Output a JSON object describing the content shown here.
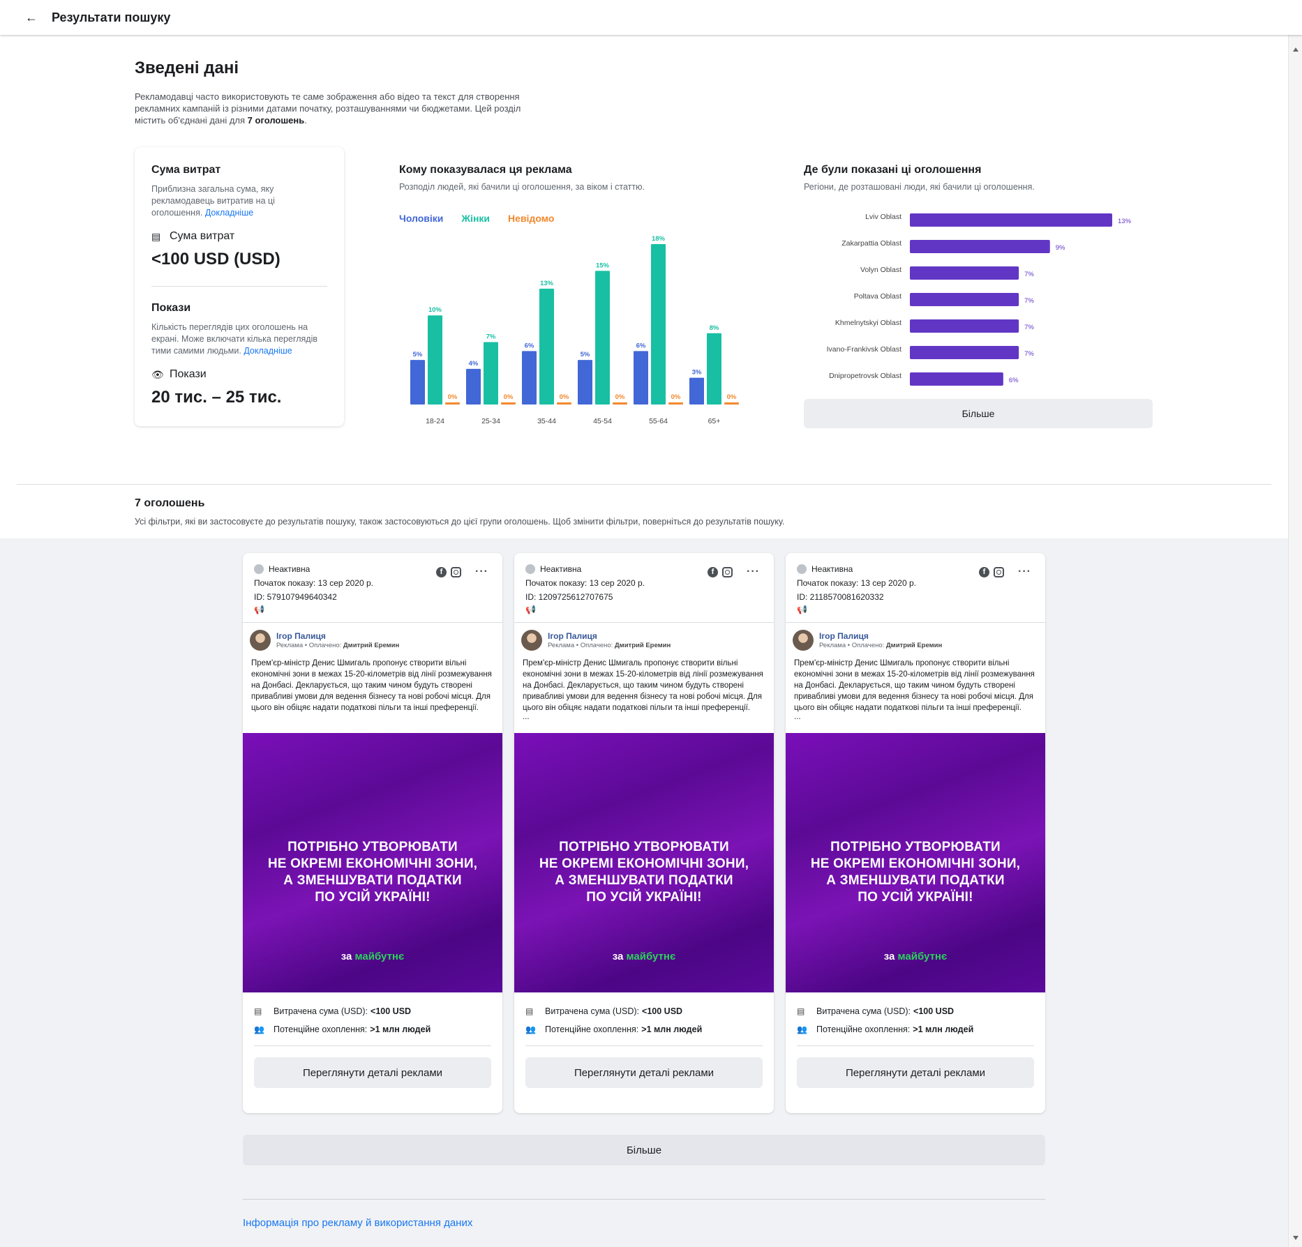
{
  "topbar": {
    "back_icon": "←",
    "title": "Результати пошуку"
  },
  "summary": {
    "title": "Зведені дані",
    "desc_before": "Рекламодавці часто використовують те саме зображення або відео та текст для створення рекламних кампаній із різними датами початку, розташуваннями чи бюджетами. Цей розділ містить об'єднані дані для ",
    "desc_bold": "7 оголошень",
    "desc_after": "."
  },
  "spend": {
    "title": "Сума витрат",
    "desc": "Приблизна загальна сума, яку рекламодавець витратив на ці оголошення.",
    "link": "Докладніше",
    "metric_label": "Сума витрат",
    "metric_value": "<100 USD (USD)"
  },
  "impressions": {
    "title": "Покази",
    "desc": "Кількість переглядів цих оголошень на екрані. Може включати кілька переглядів тими самими людьми.",
    "link": "Докладніше",
    "metric_label": "Покази",
    "metric_value": "20 тис. – 25 тис."
  },
  "demographics": {
    "title": "Кому показувалася ця реклама",
    "subtitle": "Розподіл людей, які бачили ці оголошення, за віком і статтю.",
    "legend": [
      "Чоловіки",
      "Жінки",
      "Невідомо"
    ]
  },
  "regions": {
    "title": "Де були показані ці оголошення",
    "subtitle": "Регіони, де розташовані люди, які бачили ці оголошення.",
    "more_label": "Більше"
  },
  "chart_data": [
    {
      "type": "bar",
      "categories": [
        "18-24",
        "25-34",
        "35-44",
        "45-54",
        "55-64",
        "65+"
      ],
      "series": [
        {
          "name": "Чоловіки",
          "values": [
            5,
            4,
            6,
            5,
            6,
            3
          ],
          "labels": [
            "5%",
            "4%",
            "6%",
            "5%",
            "6%",
            "3%"
          ],
          "color": "#4267d6"
        },
        {
          "name": "Жінки",
          "values": [
            10,
            7,
            13,
            15,
            18,
            8
          ],
          "labels": [
            "10%",
            "7%",
            "13%",
            "15%",
            "18%",
            "8%"
          ],
          "color": "#19bfa3"
        },
        {
          "name": "Невідомо",
          "values": [
            0,
            0,
            0,
            0,
            0,
            0
          ],
          "labels": [
            "0%",
            "0%",
            "0%",
            "0%",
            "0%",
            "0%"
          ],
          "color": "#f2882d"
        }
      ],
      "ylim": [
        0,
        18
      ]
    },
    {
      "type": "bar",
      "orientation": "horizontal",
      "categories": [
        "Lviv Oblast",
        "Zakarpattia Oblast",
        "Volyn Oblast",
        "Poltava Oblast",
        "Khmelnytskyi Oblast",
        "Ivano-Frankivsk Oblast",
        "Dnipropetrovsk Oblast"
      ],
      "values": [
        13,
        9,
        7,
        7,
        7,
        7,
        6
      ],
      "labels": [
        "13%",
        "9%",
        "7%",
        "7%",
        "7%",
        "7%",
        "6%"
      ],
      "color": "#6236c5",
      "xlim": [
        0,
        13
      ]
    }
  ],
  "ads_section": {
    "count_title": "7 оголошень",
    "note": "Усі фільтри, які ви застосовуєте до результатів пошуку, також застосовуються до цієї групи оголошень. Щоб змінити фільтри, поверніться до результатів пошуку."
  },
  "ads": [
    {
      "status": "Неактивна",
      "start": "Початок показу: 13 сер 2020 р.",
      "id": "ID: 579107949640342",
      "advertiser": "Ігор Палиця",
      "meta_prefix": "Реклама • Оплачено: ",
      "meta_payer": "Дмитрий Еремин",
      "body": "Прем'єр-міністр Денис Шмигаль пропонує створити вільні економічні зони в межах 15-20-кілометрів від лінії розмежування на Донбасі. Декларується, що таким чином будуть створені привабливі умови для ведення бізнесу та нові робочі місця. Для цього він обіцяє надати податкові пільги та інші преференції.",
      "ellipsis": "",
      "headline": "ПОТРІБНО УТВОРЮВАТИ\nНЕ ОКРЕМІ ЕКОНОМІЧНІ ЗОНИ,\nА ЗМЕНШУВАТИ ПОДАТКИ\nПО УСІЙ УКРАЇНІ!",
      "brand_a": "за",
      "brand_b": "майбутнє",
      "spent_label": "Витрачена сума (USD):",
      "spent_value": "<100 USD",
      "reach_label": "Потенційне охоплення:",
      "reach_value": ">1 млн людей",
      "button": "Переглянути деталі реклами"
    },
    {
      "status": "Неактивна",
      "start": "Початок показу: 13 сер 2020 р.",
      "id": "ID: 1209725612707675",
      "advertiser": "Ігор Палиця",
      "meta_prefix": "Реклама • Оплачено: ",
      "meta_payer": "Дмитрий Еремин",
      "body": "Прем'єр-міністр Денис Шмигаль пропонує створити вільні економічні зони в межах 15-20-кілометрів від лінії розмежування на Донбасі. Декларується, що таким чином будуть створені привабливі умови для ведення бізнесу та нові робочі місця. Для цього він обіцяє надати податкові пільги та інші преференції.",
      "ellipsis": "...",
      "headline": "ПОТРІБНО УТВОРЮВАТИ\nНЕ ОКРЕМІ ЕКОНОМІЧНІ ЗОНИ,\nА ЗМЕНШУВАТИ ПОДАТКИ\nПО УСІЙ УКРАЇНІ!",
      "brand_a": "за",
      "brand_b": "майбутнє",
      "spent_label": "Витрачена сума (USD):",
      "spent_value": "<100 USD",
      "reach_label": "Потенційне охоплення:",
      "reach_value": ">1 млн людей",
      "button": "Переглянути деталі реклами"
    },
    {
      "status": "Неактивна",
      "start": "Початок показу: 13 сер 2020 р.",
      "id": "ID: 2118570081620332",
      "advertiser": "Ігор Палиця",
      "meta_prefix": "Реклама • Оплачено: ",
      "meta_payer": "Дмитрий Еремин",
      "body": "Прем'єр-міністр Денис Шмигаль пропонує створити вільні економічні зони в межах 15-20-кілометрів від лінії розмежування на Донбасі. Декларується, що таким чином будуть створені привабливі умови для ведення бізнесу та нові робочі місця. Для цього він обіцяє надати податкові пільги та інші преференції.",
      "ellipsis": "...",
      "headline": "ПОТРІБНО УТВОРЮВАТИ\nНЕ ОКРЕМІ ЕКОНОМІЧНІ ЗОНИ,\nА ЗМЕНШУВАТИ ПОДАТКИ\nПО УСІЙ УКРАЇНІ!",
      "brand_a": "за",
      "brand_b": "майбутнє",
      "spent_label": "Витрачена сума (USD):",
      "spent_value": "<100 USD",
      "reach_label": "Потенційне охоплення:",
      "reach_value": ">1 млн людей",
      "button": "Переглянути деталі реклами"
    }
  ],
  "footer": {
    "more_label": "Більше",
    "link": "Інформація про рекламу й використання даних"
  }
}
